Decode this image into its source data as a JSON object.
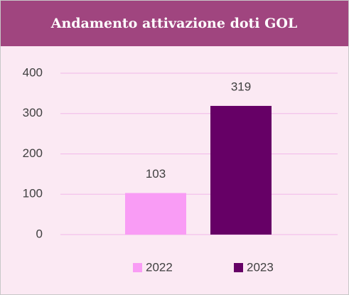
{
  "chart_data": {
    "type": "bar",
    "title": "Andamento attivazione doti GOL",
    "series": [
      {
        "name": "2022",
        "color": "#f99cf5",
        "values": [
          103
        ]
      },
      {
        "name": "2023",
        "color": "#660066",
        "values": [
          319
        ]
      }
    ],
    "ylim": [
      0,
      400
    ],
    "yticks": [
      0,
      100,
      200,
      300,
      400
    ],
    "grid": true,
    "legend": "bottom"
  }
}
